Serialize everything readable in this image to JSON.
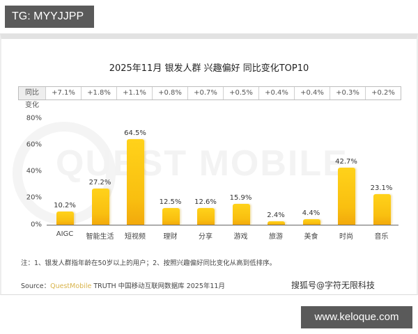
{
  "top_tag": "TG: MYYJJPP",
  "bottom_tag": "www.keloque.com",
  "watermark": "QUEST MOBILE",
  "chart_data": {
    "type": "bar",
    "title": "2025年11月 银发人群 兴趣偏好 同比变化TOP10",
    "categories": [
      "AIGC",
      "智能生活",
      "短视频",
      "理财",
      "分享",
      "游戏",
      "旅游",
      "美食",
      "时尚",
      "音乐"
    ],
    "values": [
      10.2,
      27.2,
      64.5,
      12.5,
      12.6,
      15.9,
      2.4,
      4.4,
      42.7,
      23.1
    ],
    "value_labels": [
      "10.2%",
      "27.2%",
      "64.5%",
      "12.5%",
      "12.6%",
      "15.9%",
      "2.4%",
      "4.4%",
      "42.7%",
      "23.1%"
    ],
    "yoy_header": "同比变化",
    "yoy_change": [
      "+7.1%",
      "+1.8%",
      "+1.1%",
      "+0.8%",
      "+0.7%",
      "+0.5%",
      "+0.4%",
      "+0.4%",
      "+0.3%",
      "+0.2%"
    ],
    "yticks": [
      "0%",
      "20%",
      "40%",
      "60%",
      "80%"
    ],
    "ylim": [
      0,
      80
    ],
    "xlabel": "",
    "ylabel": "",
    "grid": false,
    "legend": "none",
    "bar_color": "#f9c012"
  },
  "footer": {
    "note": "注：1、银发人群指年龄在50岁以上的用户；2、按照兴趣偏好同比变化从高到低排序。",
    "source_prefix": "Source：",
    "source_brand": "QuestMobile",
    "source_rest": " TRUTH 中国移动互联网数据库 2025年11月",
    "credit": "搜狐号@字符无限科技"
  }
}
